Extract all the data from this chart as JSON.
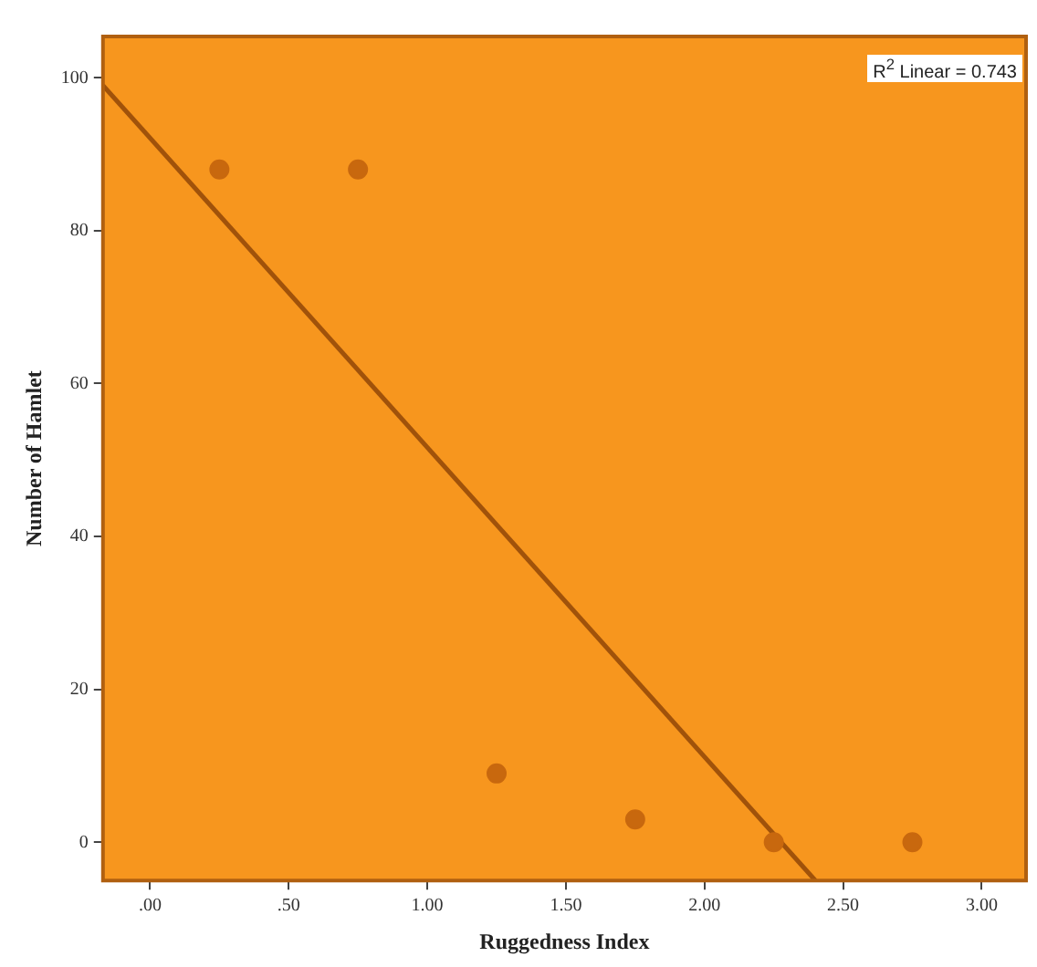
{
  "chart_data": {
    "type": "scatter",
    "xlabel": "Ruggedness Index",
    "ylabel": "Number of Hamlet",
    "series": [
      {
        "color": "#c8680e",
        "x": [
          0.25,
          0.75,
          1.25,
          1.75,
          2.25,
          2.75
        ],
        "values": [
          88,
          88,
          9,
          3,
          0,
          0
        ]
      },
      {
        "type": "line",
        "marker": "none",
        "color": "#a0520a",
        "x": [
          -0.17,
          2.4
        ],
        "values": [
          99,
          -5
        ]
      }
    ],
    "xlim": [
      -0.17,
      3.16
    ],
    "xticks": [
      {
        "value": 0,
        "label": ".00"
      },
      {
        "value": 0.5,
        "label": ".50"
      },
      {
        "value": 1,
        "label": "1.00"
      },
      {
        "value": 1.5,
        "label": "1.50"
      },
      {
        "value": 2,
        "label": "2.00"
      },
      {
        "value": 2.5,
        "label": "2.50"
      },
      {
        "value": 3,
        "label": "3.00"
      }
    ],
    "ylim": [
      -5,
      105.4
    ],
    "yticks": [
      0,
      20,
      40,
      60,
      80,
      100
    ],
    "annotations": [
      "R$^{2}$ Linear = 0.743"
    ],
    "marker": "circle",
    "grid": false,
    "legend": false
  }
}
